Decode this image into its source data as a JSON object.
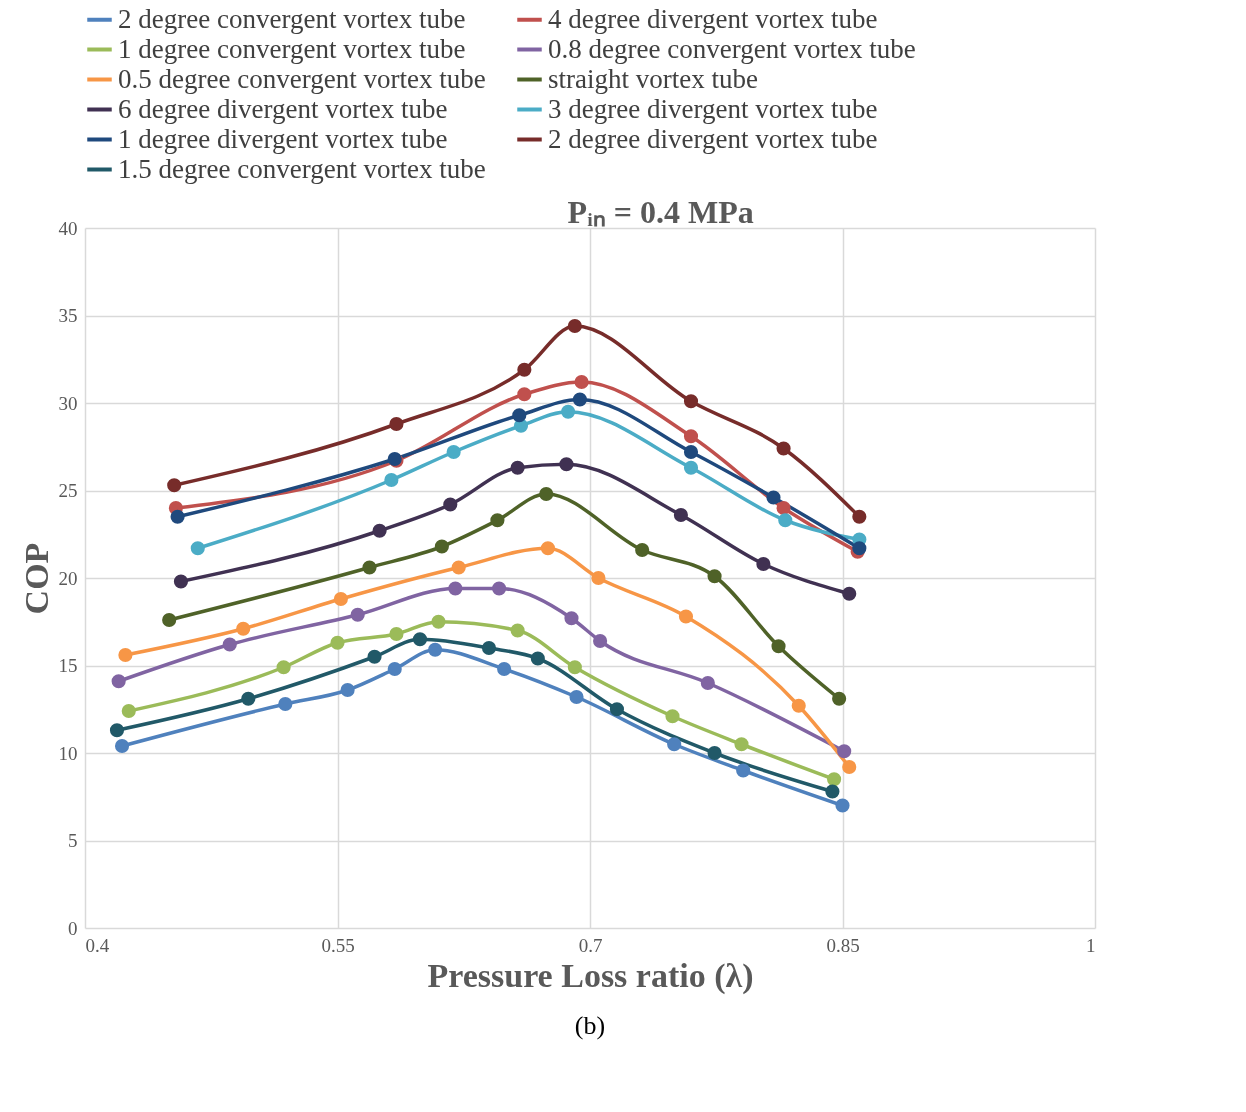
{
  "chart_data": {
    "type": "line",
    "title": "Pᵢₙ = 0.4 MPa",
    "xlabel": "Pressure Loss ratio (λ)",
    "ylabel": "COP",
    "annotations": [
      "(b)"
    ],
    "xlim": [
      0.4,
      1
    ],
    "xticks": [
      0.4,
      0.55,
      0.7,
      0.85,
      1
    ],
    "ylim": [
      0,
      40
    ],
    "yticks": [
      0,
      5,
      10,
      15,
      20,
      25,
      30,
      35,
      40
    ],
    "grid": true,
    "legend": "top",
    "marker": "circle",
    "line_style": "solid",
    "series": [
      {
        "name": "2 degree convergent vortex  tube",
        "color": "#4f81bd",
        "x": [
          0.422,
          0.519,
          0.556,
          0.584,
          0.608,
          0.649,
          0.692,
          0.75,
          0.791,
          0.85
        ],
        "values": [
          10.4,
          12.8,
          13.6,
          14.8,
          15.9,
          14.8,
          13.2,
          10.5,
          9.0,
          7.0
        ]
      },
      {
        "name": "4 degree divergent vortex  tube",
        "color": "#c0504d",
        "x": [
          0.454,
          0.585,
          0.661,
          0.695,
          0.76,
          0.815,
          0.859
        ],
        "values": [
          24.0,
          26.7,
          30.5,
          31.2,
          28.1,
          24.0,
          21.5
        ]
      },
      {
        "name": "1 degree convergent vortex  tube",
        "color": "#9bbb59",
        "x": [
          0.426,
          0.518,
          0.55,
          0.585,
          0.61,
          0.657,
          0.691,
          0.749,
          0.79,
          0.845
        ],
        "values": [
          12.4,
          14.9,
          16.3,
          16.8,
          17.5,
          17.0,
          14.9,
          12.1,
          10.5,
          8.5
        ]
      },
      {
        "name": "0.8 degree convergent vortex  tube",
        "color": "#8064a2",
        "x": [
          0.42,
          0.486,
          0.562,
          0.62,
          0.646,
          0.689,
          0.706,
          0.77,
          0.851
        ],
        "values": [
          14.1,
          16.2,
          17.9,
          19.4,
          19.4,
          17.7,
          16.4,
          14.0,
          10.1
        ]
      },
      {
        "name": "0.5 degree convergent vortex  tube",
        "color": "#f79646",
        "x": [
          0.424,
          0.494,
          0.552,
          0.622,
          0.675,
          0.705,
          0.757,
          0.824,
          0.854
        ],
        "values": [
          15.6,
          17.1,
          18.8,
          20.6,
          21.7,
          20.0,
          17.8,
          12.7,
          9.2
        ]
      },
      {
        "name": "straight vortex tube",
        "color": "#4f6228",
        "x": [
          0.45,
          0.569,
          0.612,
          0.645,
          0.674,
          0.731,
          0.774,
          0.812,
          0.848
        ],
        "values": [
          17.6,
          20.6,
          21.8,
          23.3,
          24.8,
          21.6,
          20.1,
          16.1,
          13.1
        ]
      },
      {
        "name": "6 degree divergent vortex tube",
        "color": "#403152",
        "x": [
          0.457,
          0.575,
          0.617,
          0.657,
          0.686,
          0.754,
          0.803,
          0.854
        ],
        "values": [
          19.8,
          22.7,
          24.2,
          26.3,
          26.5,
          23.6,
          20.8,
          19.1
        ]
      },
      {
        "name": "3 degree divergent vortex tube",
        "color": "#4bacc6",
        "x": [
          0.467,
          0.582,
          0.619,
          0.659,
          0.687,
          0.76,
          0.816,
          0.86
        ],
        "values": [
          21.7,
          25.6,
          27.2,
          28.7,
          29.5,
          26.3,
          23.3,
          22.2
        ]
      },
      {
        "name": "1 degree divergent vortex tube",
        "color": "#1f497d",
        "x": [
          0.455,
          0.584,
          0.658,
          0.694,
          0.76,
          0.809,
          0.86
        ],
        "values": [
          23.5,
          26.8,
          29.3,
          30.2,
          27.2,
          24.6,
          21.7
        ]
      },
      {
        "name": "2 degree divergent vortex tube",
        "color": "#772c2a",
        "x": [
          0.453,
          0.585,
          0.661,
          0.691,
          0.76,
          0.815,
          0.86
        ],
        "values": [
          25.3,
          28.8,
          31.9,
          34.4,
          30.1,
          27.4,
          23.5
        ]
      },
      {
        "name": "1.5 degree convergent vortex tube",
        "color": "#215968",
        "x": [
          0.419,
          0.497,
          0.572,
          0.599,
          0.64,
          0.669,
          0.716,
          0.774,
          0.844
        ],
        "values": [
          11.3,
          13.1,
          15.5,
          16.5,
          16.0,
          15.4,
          12.5,
          10.0,
          7.8
        ]
      }
    ]
  }
}
